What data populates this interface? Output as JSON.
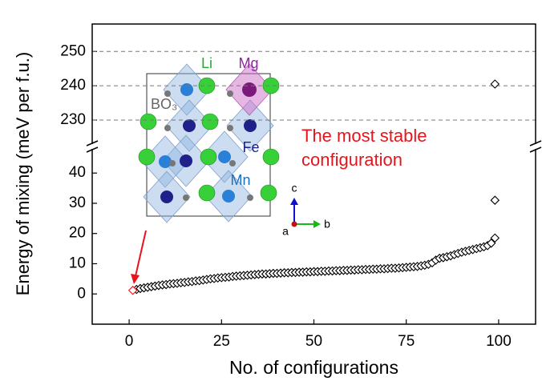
{
  "chart_data": [
    {
      "type": "scatter",
      "xlim": [
        -10,
        110
      ],
      "ylim": [
        223,
        258
      ],
      "yticks": [
        230,
        240,
        250
      ],
      "grid": true,
      "series": [
        {
          "color": "#000000",
          "x": [
            99
          ],
          "values": [
            240.5
          ]
        }
      ]
    },
    {
      "type": "scatter",
      "xlim": [
        -10,
        110
      ],
      "ylim": [
        -10,
        48
      ],
      "xticks": [
        0,
        25,
        50,
        75,
        100
      ],
      "yticks": [
        0,
        10,
        20,
        30,
        40
      ],
      "grid": false,
      "xlabel": "No. of configurations",
      "ylabel": "Energy of mixing (meV per f.u.)",
      "annotation": {
        "text": [
          "The most stable",
          "configuration"
        ],
        "color": "#e8141c"
      },
      "series": [
        {
          "color": "#000000",
          "x": [
            2,
            3,
            4,
            5,
            6,
            7,
            8,
            9,
            10,
            11,
            12,
            13,
            14,
            15,
            16,
            17,
            18,
            19,
            20,
            21,
            22,
            23,
            24,
            25,
            26,
            27,
            28,
            29,
            30,
            31,
            32,
            33,
            34,
            35,
            36,
            37,
            38,
            39,
            40,
            41,
            42,
            43,
            44,
            45,
            46,
            47,
            48,
            49,
            50,
            51,
            52,
            53,
            54,
            55,
            56,
            57,
            58,
            59,
            60,
            61,
            62,
            63,
            64,
            65,
            66,
            67,
            68,
            69,
            70,
            71,
            72,
            73,
            74,
            75,
            76,
            77,
            78,
            79,
            80,
            81,
            82,
            83,
            84,
            85,
            86,
            87,
            88,
            89,
            90,
            91,
            92,
            93,
            94,
            95,
            96,
            97,
            98,
            99,
            99
          ],
          "values": [
            1.5,
            1.8,
            2.0,
            2.2,
            2.4,
            2.6,
            2.8,
            3.0,
            3.1,
            3.3,
            3.4,
            3.5,
            3.7,
            3.8,
            4.0,
            4.1,
            4.3,
            4.4,
            4.6,
            4.8,
            5.0,
            5.1,
            5.3,
            5.4,
            5.5,
            5.6,
            5.8,
            5.9,
            6.0,
            6.1,
            6.2,
            6.3,
            6.4,
            6.5,
            6.6,
            6.6,
            6.7,
            6.8,
            6.8,
            6.9,
            7.0,
            7.0,
            7.1,
            7.1,
            7.2,
            7.2,
            7.3,
            7.3,
            7.4,
            7.4,
            7.5,
            7.5,
            7.6,
            7.6,
            7.7,
            7.7,
            7.8,
            7.8,
            7.9,
            7.9,
            8.0,
            8.0,
            8.1,
            8.1,
            8.2,
            8.2,
            8.3,
            8.3,
            8.4,
            8.5,
            8.5,
            8.6,
            8.7,
            8.8,
            8.9,
            9.0,
            9.1,
            9.3,
            9.5,
            9.8,
            10.3,
            11.2,
            11.8,
            12.0,
            12.3,
            12.6,
            13.0,
            13.4,
            13.8,
            14.1,
            14.4,
            14.7,
            15.0,
            15.3,
            15.6,
            16.0,
            16.8,
            18.5,
            31
          ]
        },
        {
          "color": "#e8141c",
          "x": [
            1
          ],
          "values": [
            1.2
          ]
        }
      ]
    }
  ],
  "inset": {
    "labels": [
      "Li",
      "Mg",
      "BO₃",
      "Fe",
      "Mn"
    ],
    "axes": [
      "c",
      "a",
      "b"
    ]
  }
}
